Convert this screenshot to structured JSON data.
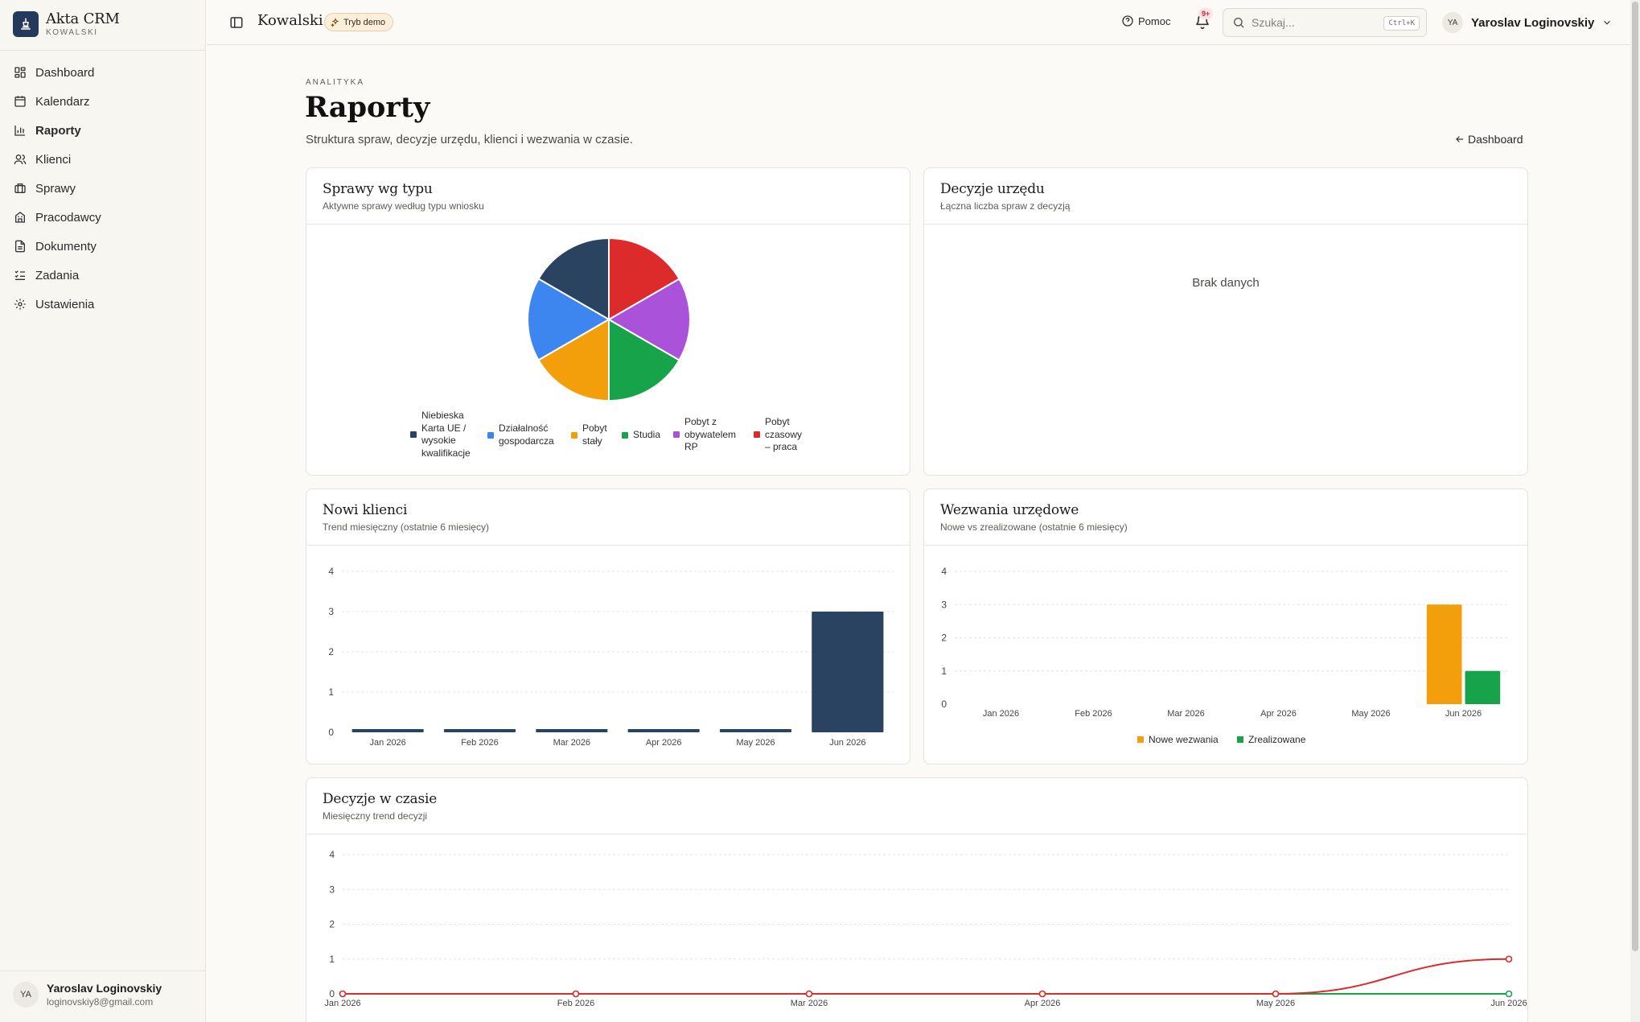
{
  "brand": {
    "title": "Akta CRM",
    "subtitle": "KOWALSKI"
  },
  "sidebar": {
    "items": [
      {
        "label": "Dashboard",
        "icon": "dashboard-icon"
      },
      {
        "label": "Kalendarz",
        "icon": "calendar-icon"
      },
      {
        "label": "Raporty",
        "icon": "bar-chart-icon",
        "active": true
      },
      {
        "label": "Klienci",
        "icon": "users-icon"
      },
      {
        "label": "Sprawy",
        "icon": "briefcase-icon"
      },
      {
        "label": "Pracodawcy",
        "icon": "building-icon"
      },
      {
        "label": "Dokumenty",
        "icon": "document-icon"
      },
      {
        "label": "Zadania",
        "icon": "checklist-icon"
      },
      {
        "label": "Ustawienia",
        "icon": "gear-icon"
      }
    ],
    "user": {
      "initials": "YA",
      "name": "Yaroslav Loginovskiy",
      "email": "loginovskiy8@gmail.com"
    }
  },
  "topbar": {
    "title": "Kowalski",
    "demo_badge": "Tryb demo",
    "help_label": "Pomoc",
    "notifications_badge": "9+",
    "search_placeholder": "Szukaj...",
    "search_shortcut": "Ctrl+K",
    "user_initials": "YA",
    "user_name": "Yaroslav Loginovskiy"
  },
  "page": {
    "eyebrow": "ANALITYKA",
    "title": "Raporty",
    "subtitle": "Struktura spraw, decyzje urzędu, klienci i wezwania w czasie.",
    "back_link": "Dashboard"
  },
  "cards": {
    "case_types": {
      "title": "Sprawy wg typu",
      "subtitle": "Aktywne sprawy według typu wniosku"
    },
    "decisions": {
      "title": "Decyzje urzędu",
      "subtitle": "Łączna liczba spraw z decyzją",
      "empty": "Brak danych"
    },
    "new_clients": {
      "title": "Nowi klienci",
      "subtitle": "Trend miesięczny (ostatnie 6 miesięcy)"
    },
    "summons": {
      "title": "Wezwania urzędowe",
      "subtitle": "Nowe vs zrealizowane (ostatnie 6 miesięcy)"
    },
    "decisions_time": {
      "title": "Decyzje w czasie",
      "subtitle": "Miesięczny trend decyzji"
    }
  },
  "chart_data": [
    {
      "type": "pie",
      "categories": [
        "Niebieska Karta UE / wysokie kwalifikacje",
        "Działalność gospodarcza",
        "Pobyt stały",
        "Studia",
        "Pobyt z obywatelem RP",
        "Pobyt czasowy – praca"
      ],
      "values": [
        1,
        1,
        1,
        1,
        1,
        1
      ],
      "colors": [
        "#2a4361",
        "#3d85ef",
        "#f29f0b",
        "#17a34a",
        "#aa52d9",
        "#dd2a2a"
      ],
      "legend": "bottom"
    },
    {
      "type": "bar",
      "categories": [
        "Jan 2026",
        "Feb 2026",
        "Mar 2026",
        "Apr 2026",
        "May 2026",
        "Jun 2026"
      ],
      "values": [
        0,
        0,
        0,
        0,
        0,
        3
      ],
      "ylim": [
        0,
        4
      ],
      "yticks": [
        0,
        1,
        2,
        3,
        4
      ],
      "color": "#2a4361",
      "grid": true
    },
    {
      "type": "bar",
      "categories": [
        "Jan 2026",
        "Feb 2026",
        "Mar 2026",
        "Apr 2026",
        "May 2026",
        "Jun 2026"
      ],
      "series": [
        {
          "name": "Nowe wezwania",
          "values": [
            0,
            0,
            0,
            0,
            0,
            3
          ],
          "color": "#f29f0b"
        },
        {
          "name": "Zrealizowane",
          "values": [
            0,
            0,
            0,
            0,
            0,
            1
          ],
          "color": "#17a34a"
        }
      ],
      "ylim": [
        0,
        4
      ],
      "yticks": [
        0,
        1,
        2,
        3,
        4
      ],
      "legend": "bottom",
      "grid": true
    },
    {
      "type": "line",
      "x": [
        "Jan 2026",
        "Feb 2026",
        "Mar 2026",
        "Apr 2026",
        "May 2026",
        "Jun 2026"
      ],
      "series": [
        {
          "values": [
            0,
            0,
            0,
            0,
            0,
            0
          ],
          "color": "#17a34a"
        },
        {
          "values": [
            0,
            0,
            0,
            0,
            0,
            1
          ],
          "color": "#dd2a2a"
        }
      ],
      "ylim": [
        0,
        4
      ],
      "yticks": [
        0,
        1,
        2,
        3,
        4
      ],
      "grid": true
    }
  ]
}
